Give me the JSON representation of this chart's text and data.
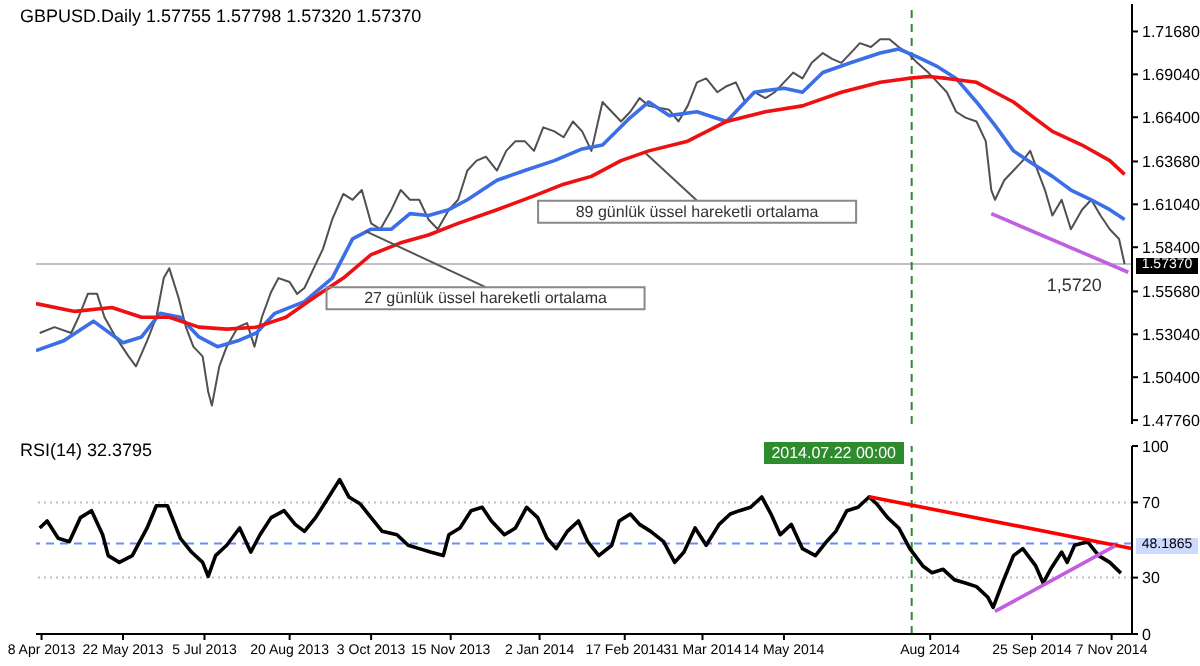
{
  "chart_data": [
    {
      "type": "line",
      "title": "GBPUSD.Daily 1.57755 1.57798 1.57320 1.57370",
      "xlim": [
        "2013-04-05",
        "2014-11-18"
      ],
      "ylim": [
        1.4752,
        1.7337
      ],
      "yticks": [
        {
          "value": 1.4776,
          "label": "1.47760"
        },
        {
          "value": 1.504,
          "label": "1.50400"
        },
        {
          "value": 1.5304,
          "label": "1.53040"
        },
        {
          "value": 1.5568,
          "label": "1.55680"
        },
        {
          "value": 1.584,
          "label": "1.58400"
        },
        {
          "value": 1.6104,
          "label": "1.61040"
        },
        {
          "value": 1.6368,
          "label": "1.63680"
        },
        {
          "value": 1.664,
          "label": "1.66400"
        },
        {
          "value": 1.6904,
          "label": "1.69040"
        },
        {
          "value": 1.7168,
          "label": "1.71680"
        }
      ],
      "tick_labels": "y",
      "series": [
        {
          "color": "#505050",
          "x": [
            "2013-04-07",
            "2013-04-15",
            "2013-04-24",
            "2013-04-28",
            "2013-05-03",
            "2013-05-08",
            "2013-05-12",
            "2013-05-18",
            "2013-05-25",
            "2013-05-29",
            "2013-06-04",
            "2013-06-09",
            "2013-06-13",
            "2013-06-16",
            "2013-06-21",
            "2013-06-25",
            "2013-06-29",
            "2013-07-04",
            "2013-07-07",
            "2013-07-09",
            "2013-07-13",
            "2013-07-17",
            "2013-07-23",
            "2013-07-28",
            "2013-08-01",
            "2013-08-05",
            "2013-08-10",
            "2013-08-14",
            "2013-08-20",
            "2013-08-24",
            "2013-08-28",
            "2013-09-02",
            "2013-09-07",
            "2013-09-12",
            "2013-09-18",
            "2013-09-23",
            "2013-09-28",
            "2013-10-03",
            "2013-10-08",
            "2013-10-14",
            "2013-10-19",
            "2013-10-24",
            "2013-10-29",
            "2013-11-03",
            "2013-11-08",
            "2013-11-14",
            "2013-11-19",
            "2013-11-24",
            "2013-11-29",
            "2013-12-04",
            "2013-12-10",
            "2013-12-15",
            "2013-12-20",
            "2013-12-25",
            "2013-12-30",
            "2014-01-04",
            "2014-01-10",
            "2014-01-15",
            "2014-01-20",
            "2014-01-25",
            "2014-01-30",
            "2014-02-05",
            "2014-02-10",
            "2014-02-15",
            "2014-02-20",
            "2014-02-25",
            "2014-03-02",
            "2014-03-13",
            "2014-03-18",
            "2014-03-23",
            "2014-03-28",
            "2014-04-02",
            "2014-04-08",
            "2014-04-13",
            "2014-04-18",
            "2014-04-23",
            "2014-04-28",
            "2014-05-04",
            "2014-05-09",
            "2014-05-14",
            "2014-05-19",
            "2014-05-24",
            "2014-05-29",
            "2014-06-04",
            "2014-06-09",
            "2014-06-14",
            "2014-06-19",
            "2014-06-24",
            "2014-06-30",
            "2014-07-05",
            "2014-07-10",
            "2014-07-15",
            "2014-07-20",
            "2014-07-25",
            "2014-07-31",
            "2014-08-05",
            "2014-08-10",
            "2014-08-15",
            "2014-08-20",
            "2014-08-26",
            "2014-08-31",
            "2014-09-03",
            "2014-09-05",
            "2014-09-10",
            "2014-09-15",
            "2014-09-20",
            "2014-09-24",
            "2014-09-28",
            "2014-10-02",
            "2014-10-06",
            "2014-10-11",
            "2014-10-16",
            "2014-10-22",
            "2014-10-27",
            "2014-11-01",
            "2014-11-06",
            "2014-11-11",
            "2014-11-14"
          ],
          "values": [
            1.5312,
            1.5348,
            1.5312,
            1.5409,
            1.5553,
            1.5553,
            1.5409,
            1.5288,
            1.5168,
            1.5107,
            1.5264,
            1.5409,
            1.565,
            1.571,
            1.5529,
            1.5348,
            1.5228,
            1.5168,
            1.4951,
            1.4866,
            1.5107,
            1.5228,
            1.5348,
            1.5373,
            1.5228,
            1.5409,
            1.5565,
            1.565,
            1.5626,
            1.5553,
            1.5589,
            1.571,
            1.583,
            1.6011,
            1.6168,
            1.6132,
            1.6192,
            1.5987,
            1.5951,
            1.6071,
            1.6192,
            1.6132,
            1.6132,
            1.6011,
            1.5951,
            1.6071,
            1.6132,
            1.6312,
            1.6373,
            1.6397,
            1.6312,
            1.6433,
            1.6493,
            1.6493,
            1.6433,
            1.6578,
            1.6553,
            1.6517,
            1.6614,
            1.6553,
            1.6433,
            1.6734,
            1.6674,
            1.6614,
            1.6674,
            1.6758,
            1.671,
            1.6686,
            1.6614,
            1.671,
            1.6855,
            1.6879,
            1.6794,
            1.6831,
            1.6855,
            1.6734,
            1.6794,
            1.6758,
            1.6794,
            1.6855,
            1.6915,
            1.6879,
            1.6975,
            1.7035,
            1.6999,
            1.6975,
            1.7035,
            1.7096,
            1.7072,
            1.712,
            1.712,
            1.7072,
            1.7035,
            1.6975,
            1.6915,
            1.6855,
            1.6794,
            1.6674,
            1.6638,
            1.6614,
            1.6493,
            1.6192,
            1.6132,
            1.6252,
            1.6312,
            1.6373,
            1.6433,
            1.6312,
            1.6192,
            1.6035,
            1.6132,
            1.5951,
            1.6071,
            1.6132,
            1.6035,
            1.5951,
            1.5891,
            1.5737
          ]
        },
        {
          "color": "#3c6ee6",
          "x": [
            "2013-04-05",
            "2013-04-20",
            "2013-05-06",
            "2013-05-22",
            "2013-06-01",
            "2013-06-11",
            "2013-06-22",
            "2013-07-02",
            "2013-07-12",
            "2013-07-23",
            "2013-08-02",
            "2013-08-12",
            "2013-08-28",
            "2013-09-12",
            "2013-09-23",
            "2013-10-03",
            "2013-10-14",
            "2013-10-24",
            "2013-11-03",
            "2013-11-14",
            "2013-11-24",
            "2013-12-10",
            "2013-12-25",
            "2014-01-10",
            "2014-01-25",
            "2014-02-05",
            "2014-02-20",
            "2014-03-02",
            "2014-03-13",
            "2014-03-28",
            "2014-04-13",
            "2014-04-28",
            "2014-05-14",
            "2014-05-24",
            "2014-06-04",
            "2014-06-19",
            "2014-07-05",
            "2014-07-15",
            "2014-07-25",
            "2014-08-05",
            "2014-08-15",
            "2014-08-26",
            "2014-09-05",
            "2014-09-15",
            "2014-09-26",
            "2014-10-06",
            "2014-10-16",
            "2014-10-27",
            "2014-11-06",
            "2014-11-14"
          ],
          "values": [
            1.5204,
            1.5264,
            1.5385,
            1.5252,
            1.5288,
            1.5433,
            1.5409,
            1.5288,
            1.5228,
            1.5264,
            1.5312,
            1.5433,
            1.5505,
            1.565,
            1.5891,
            1.5951,
            1.5951,
            1.6047,
            1.6035,
            1.6071,
            1.6132,
            1.6252,
            1.6312,
            1.6373,
            1.6445,
            1.6469,
            1.6638,
            1.6734,
            1.665,
            1.6674,
            1.6614,
            1.6794,
            1.6819,
            1.6794,
            1.6915,
            1.6975,
            1.7035,
            1.706,
            1.7011,
            1.6951,
            1.6879,
            1.6734,
            1.659,
            1.6433,
            1.6349,
            1.6276,
            1.6192,
            1.6132,
            1.6071,
            1.6011
          ]
        },
        {
          "color": "#ee1111",
          "x": [
            "2013-04-05",
            "2013-04-26",
            "2013-05-16",
            "2013-06-01",
            "2013-06-16",
            "2013-07-02",
            "2013-07-17",
            "2013-08-02",
            "2013-08-18",
            "2013-09-02",
            "2013-09-18",
            "2013-10-03",
            "2013-10-19",
            "2013-11-03",
            "2013-11-19",
            "2013-12-10",
            "2013-12-30",
            "2014-01-15",
            "2014-01-30",
            "2014-02-15",
            "2014-03-02",
            "2014-03-23",
            "2014-04-13",
            "2014-05-04",
            "2014-05-24",
            "2014-06-14",
            "2014-07-05",
            "2014-07-20",
            "2014-07-31",
            "2014-08-10",
            "2014-08-26",
            "2014-09-05",
            "2014-09-15",
            "2014-09-26",
            "2014-10-06",
            "2014-10-22",
            "2014-11-06",
            "2014-11-14"
          ],
          "values": [
            1.5493,
            1.5445,
            1.5469,
            1.5409,
            1.5409,
            1.5348,
            1.5336,
            1.5348,
            1.5409,
            1.5529,
            1.565,
            1.5794,
            1.5867,
            1.5915,
            1.5987,
            1.6071,
            1.6156,
            1.6228,
            1.6276,
            1.6373,
            1.6433,
            1.6493,
            1.6614,
            1.6674,
            1.671,
            1.6794,
            1.6855,
            1.6879,
            1.6891,
            1.6879,
            1.6855,
            1.6794,
            1.6734,
            1.6638,
            1.6553,
            1.6469,
            1.6373,
            1.6288
          ]
        },
        {
          "color": "#c060e0",
          "x": [
            "2014-09-03",
            "2014-11-16"
          ],
          "values": [
            1.6047,
            1.5686
          ]
        }
      ],
      "ref_lines": [
        {
          "axis": "y",
          "value": 1.5737,
          "label": "1.57370",
          "color": "#c0c0c0",
          "line_style": "solid"
        },
        {
          "axis": "x",
          "value": "2014-07-22T00:00",
          "color": "#2e8b2e",
          "line_style": "dashed"
        }
      ],
      "annotations": [
        {
          "text": "89 günlük üssel hareketli ortalama",
          "x": "2014-02-28",
          "y": 1.6421
        },
        {
          "text": "27 günlük üssel hareketli ortalama",
          "x": "2013-09-30",
          "y": 1.5939
        },
        {
          "text": "1,5720",
          "x": "2014-11-06",
          "y": 1.572
        }
      ]
    },
    {
      "type": "line",
      "title": "RSI(14) 32.3795",
      "xlim": [
        "2013-04-05",
        "2014-11-18"
      ],
      "ylim": [
        0,
        100
      ],
      "yticks": [
        0,
        30,
        70,
        100
      ],
      "xticks": [
        {
          "value": "2013-04-08",
          "label": "8 Apr 2013"
        },
        {
          "value": "2013-05-22",
          "label": "22 May 2013"
        },
        {
          "value": "2013-07-05",
          "label": "5 Jul 2013"
        },
        {
          "value": "2013-08-20",
          "label": "20 Aug 2013"
        },
        {
          "value": "2013-10-03",
          "label": "3 Oct 2013"
        },
        {
          "value": "2013-11-15",
          "label": "15 Nov 2013"
        },
        {
          "value": "2014-01-02",
          "label": "2 Jan 2014"
        },
        {
          "value": "2014-02-17",
          "label": "17 Feb 2014"
        },
        {
          "value": "2014-03-31",
          "label": "31 Mar 2014"
        },
        {
          "value": "2014-05-14",
          "label": "14 May 2014"
        },
        {
          "value": "2014-08",
          "label": "Aug 2014"
        },
        {
          "value": "2014-09-25",
          "label": "25 Sep 2014"
        },
        {
          "value": "2014-11-07",
          "label": "7 Nov 2014"
        }
      ],
      "series": [
        {
          "color": "#000000",
          "x": [
            "2013-04-07",
            "2013-04-11",
            "2013-04-17",
            "2013-04-23",
            "2013-04-29",
            "2013-05-05",
            "2013-05-11",
            "2013-05-14",
            "2013-05-20",
            "2013-05-27",
            "2013-06-04",
            "2013-06-09",
            "2013-06-15",
            "2013-06-22",
            "2013-06-28",
            "2013-07-04",
            "2013-07-07",
            "2013-07-11",
            "2013-07-17",
            "2013-07-24",
            "2013-07-30",
            "2013-08-04",
            "2013-08-10",
            "2013-08-17",
            "2013-08-23",
            "2013-08-28",
            "2013-09-03",
            "2013-09-09",
            "2013-09-16",
            "2013-09-21",
            "2013-09-27",
            "2013-10-03",
            "2013-10-09",
            "2013-10-17",
            "2013-10-23",
            "2013-10-29",
            "2013-11-04",
            "2013-11-11",
            "2013-11-14",
            "2013-11-20",
            "2013-11-26",
            "2013-12-02",
            "2013-12-07",
            "2013-12-14",
            "2013-12-20",
            "2013-12-26",
            "2014-01-01",
            "2014-01-06",
            "2014-01-11",
            "2014-01-17",
            "2014-01-23",
            "2014-01-28",
            "2014-02-03",
            "2014-02-10",
            "2014-02-14",
            "2014-02-20",
            "2014-02-25",
            "2014-03-03",
            "2014-03-10",
            "2014-03-16",
            "2014-03-21",
            "2014-03-27",
            "2014-04-02",
            "2014-04-09",
            "2014-04-15",
            "2014-04-20",
            "2014-04-26",
            "2014-05-02",
            "2014-05-07",
            "2014-05-12",
            "2014-05-18",
            "2014-05-24",
            "2014-05-31",
            "2014-06-06",
            "2014-06-11",
            "2014-06-17",
            "2014-06-23",
            "2014-06-29",
            "2014-07-03",
            "2014-07-09",
            "2014-07-15",
            "2014-07-21",
            "2014-07-28",
            "2014-08-02",
            "2014-08-08",
            "2014-08-14",
            "2014-08-20",
            "2014-08-26",
            "2014-09-01",
            "2014-09-04",
            "2014-09-09",
            "2014-09-15",
            "2014-09-20",
            "2014-09-27",
            "2014-10-01",
            "2014-10-05",
            "2014-10-11",
            "2014-10-14",
            "2014-10-18",
            "2014-10-25",
            "2014-10-31",
            "2014-11-06",
            "2014-11-12"
          ],
          "values": [
            56.4,
            60.1,
            50.9,
            49.1,
            61.9,
            65.6,
            52.8,
            41.7,
            38.1,
            41.7,
            56.4,
            68.2,
            68.2,
            50.9,
            43.6,
            38.1,
            30.7,
            41.7,
            47.2,
            56.4,
            43.6,
            52.8,
            61.9,
            65.6,
            58.3,
            54.6,
            61.9,
            71.1,
            82.1,
            72.9,
            69.3,
            61.9,
            54.6,
            52.8,
            47.2,
            45.4,
            43.6,
            41.7,
            52.8,
            56.4,
            65.6,
            67.4,
            60.1,
            52.8,
            56.4,
            67.4,
            61.9,
            50.9,
            45.4,
            54.6,
            60.1,
            49.1,
            41.7,
            47.2,
            60.1,
            63.8,
            58.3,
            54.6,
            49.1,
            38.1,
            43.6,
            56.4,
            47.2,
            58.3,
            63.8,
            65.6,
            67.4,
            72.9,
            63.8,
            52.8,
            58.3,
            45.4,
            41.7,
            49.1,
            54.6,
            65.6,
            67.4,
            72.9,
            69.3,
            61.9,
            56.4,
            45.4,
            36.2,
            32.6,
            34.4,
            28.9,
            27.1,
            25.2,
            19.7,
            14.2,
            27.1,
            41.7,
            45.4,
            36.2,
            27.1,
            34.4,
            43.6,
            38.1,
            47.2,
            49.1,
            41.7,
            38.1,
            32.4
          ]
        },
        {
          "color": "#ff0000",
          "x": [
            "2014-06-29",
            "2014-11-18"
          ],
          "values": [
            73,
            45.5
          ]
        },
        {
          "color": "#c060e0",
          "x": [
            "2014-09-05",
            "2014-11-09"
          ],
          "values": [
            12,
            47
          ]
        }
      ],
      "ref_lines": [
        {
          "axis": "y",
          "value": 70,
          "color": "#c0c0c0",
          "line_style": "dotted"
        },
        {
          "axis": "y",
          "value": 30,
          "color": "#c0c0c0",
          "line_style": "dotted"
        },
        {
          "axis": "y",
          "value": 48.1865,
          "label": "48.1865",
          "color": "#6b8cff",
          "line_style": "dashed"
        },
        {
          "axis": "x",
          "value": "2014-07-22T00:00",
          "label": "2014.07.22 00:00",
          "color": "#2e8b2e",
          "line_style": "dashed"
        }
      ]
    }
  ]
}
